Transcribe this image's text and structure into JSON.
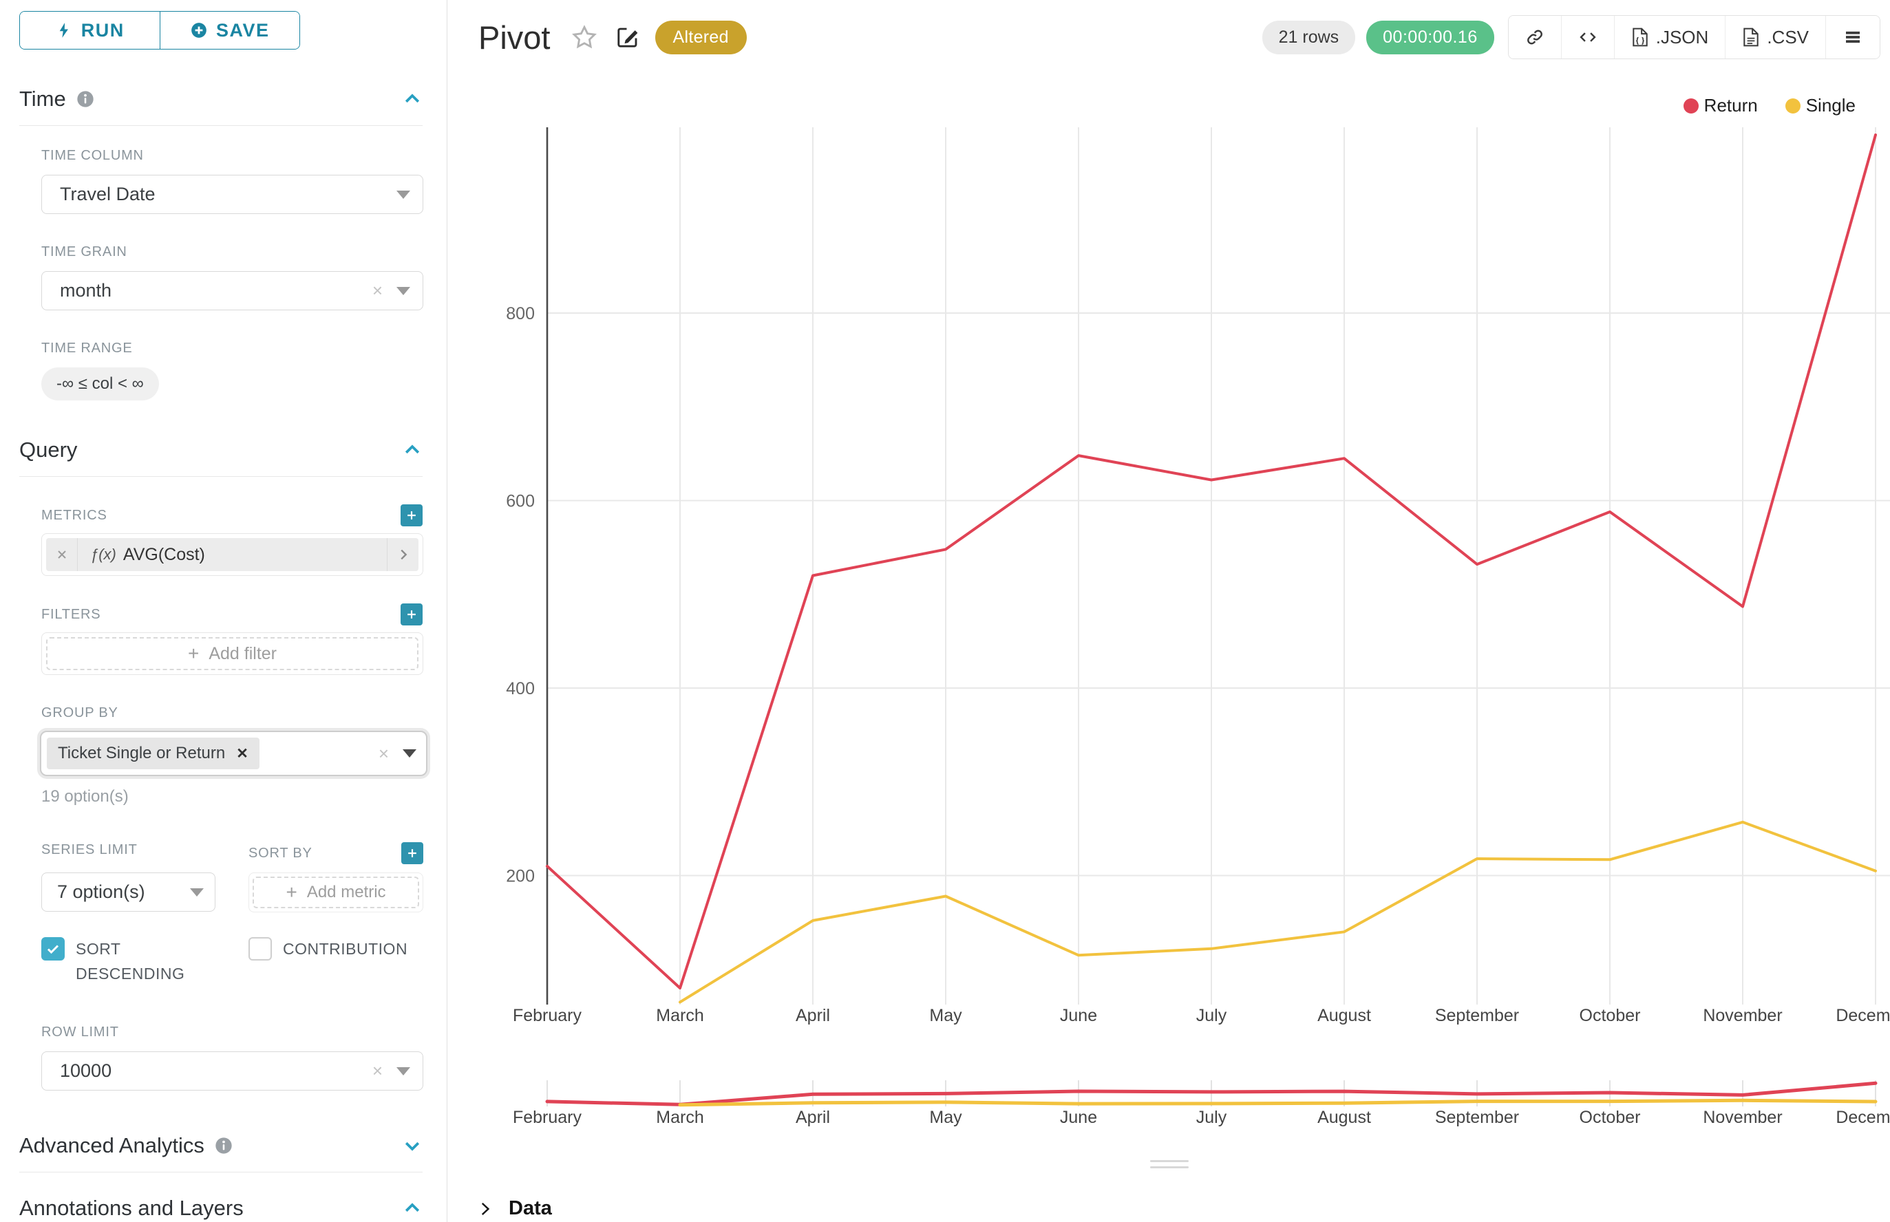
{
  "colors": {
    "accent": "#20a7c9",
    "accent_dark": "#1a85a2",
    "plus_button": "#2e93ae",
    "checkbox": "#41aecb",
    "return_red": "#e04355",
    "single_yellow": "#f2c23e",
    "timer_green": "#5ac189",
    "altered_gold": "#c9a22c"
  },
  "toolbar": {
    "run_label": "RUN",
    "save_label": "SAVE"
  },
  "time_section": {
    "title": "Time",
    "time_column_label": "TIME COLUMN",
    "time_column_value": "Travel Date",
    "time_grain_label": "TIME GRAIN",
    "time_grain_value": "month",
    "time_range_label": "TIME RANGE",
    "time_range_value": "-∞ ≤ col < ∞"
  },
  "query_section": {
    "title": "Query",
    "metrics_label": "METRICS",
    "metric_fx": "ƒ(x)",
    "metric_value": "AVG(Cost)",
    "filters_label": "FILTERS",
    "add_filter_label": "Add filter",
    "group_by_label": "GROUP BY",
    "group_by_tag": "Ticket Single or Return",
    "group_by_hint": "19 option(s)",
    "series_limit_label": "SERIES LIMIT",
    "series_limit_value": "7 option(s)",
    "sort_by_label": "SORT BY",
    "add_metric_label": "Add metric",
    "sort_descending_label": "SORT DESCENDING",
    "contribution_label": "CONTRIBUTION",
    "row_limit_label": "ROW LIMIT",
    "row_limit_value": "10000"
  },
  "advanced_section": {
    "title": "Advanced Analytics"
  },
  "annotations_section": {
    "title": "Annotations and Layers"
  },
  "header": {
    "title": "Pivot",
    "altered_badge": "Altered",
    "rows_badge": "21 rows",
    "timer": "00:00:00.16",
    "json_label": ".JSON",
    "csv_label": ".CSV"
  },
  "data_panel": {
    "label": "Data"
  },
  "chart_data": {
    "type": "line",
    "title": "Pivot",
    "x": [
      "February",
      "March",
      "April",
      "May",
      "June",
      "July",
      "August",
      "September",
      "October",
      "November",
      "December"
    ],
    "series": [
      {
        "name": "Return",
        "color": "#e04355",
        "values": [
          210,
          80,
          520,
          548,
          648,
          622,
          645,
          532,
          588,
          487,
          990
        ]
      },
      {
        "name": "Single",
        "color": "#f2c23e",
        "values": [
          null,
          65,
          152,
          178,
          115,
          122,
          140,
          218,
          217,
          257,
          205
        ]
      }
    ],
    "xlabel": "",
    "ylabel": "",
    "yticks": [
      200,
      400,
      600,
      800
    ],
    "ylim": [
      50,
      1020
    ],
    "grid": true,
    "legend_position": "top-right",
    "has_minimap": true
  }
}
